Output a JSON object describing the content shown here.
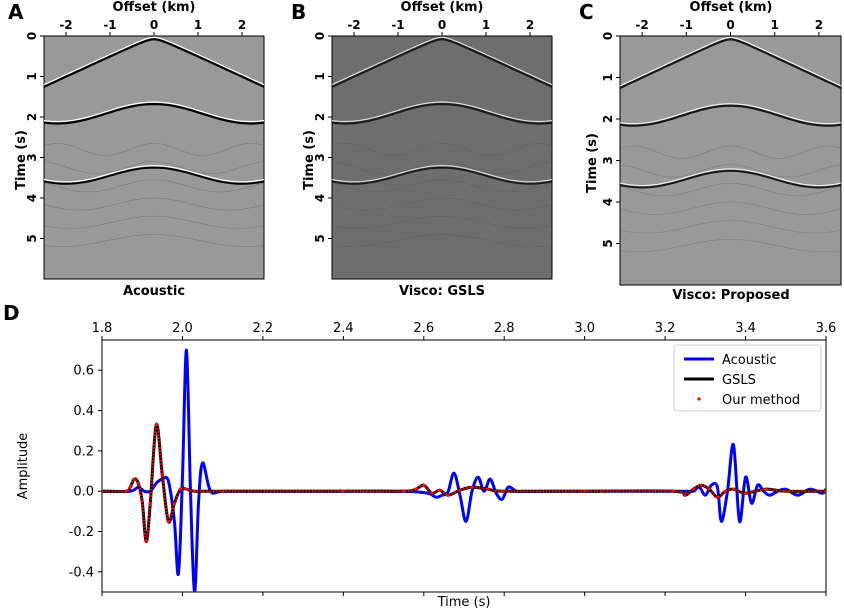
{
  "chart_data": [
    {
      "type": "heatmap",
      "panel_label": "A",
      "title": "Acoustic",
      "xlabel": "Offset (km)",
      "ylabel": "Time (s)",
      "xticks": [
        "-2",
        "-1",
        "0",
        "1",
        "2"
      ],
      "xtick_values": [
        -2,
        -1,
        0,
        1,
        2
      ],
      "yticks": [
        "0",
        "1",
        "2",
        "3",
        "4",
        "5"
      ],
      "ytick_values": [
        0,
        1,
        2,
        3,
        4,
        5
      ],
      "xlim": [
        -2.5,
        2.5
      ],
      "ylim": [
        0,
        6
      ],
      "background": "#999999",
      "reflector_strength": 1.0
    },
    {
      "type": "heatmap",
      "panel_label": "B",
      "title": "Visco: GSLS",
      "xlabel": "Offset (km)",
      "ylabel": "Time (s)",
      "xticks": [
        "-2",
        "-1",
        "0",
        "1",
        "2"
      ],
      "xtick_values": [
        -2,
        -1,
        0,
        1,
        2
      ],
      "yticks": [
        "0",
        "1",
        "2",
        "3",
        "4",
        "5"
      ],
      "ytick_values": [
        0,
        1,
        2,
        3,
        4,
        5
      ],
      "xlim": [
        -2.5,
        2.5
      ],
      "ylim": [
        0,
        6
      ],
      "background": "#6e6e6e",
      "reflector_strength": 0.75
    },
    {
      "type": "heatmap",
      "panel_label": "C",
      "title": "Visco: Proposed",
      "xlabel": "Offset (km)",
      "ylabel": "Time (s)",
      "xticks": [
        "-2",
        "-1",
        "0",
        "1",
        "2"
      ],
      "xtick_values": [
        -2,
        -1,
        0,
        1,
        2
      ],
      "yticks": [
        "0",
        "1",
        "2",
        "3",
        "4",
        "5"
      ],
      "ytick_values": [
        0,
        1,
        2,
        3,
        4,
        5
      ],
      "xlim": [
        -2.5,
        2.5
      ],
      "ylim": [
        0,
        6
      ],
      "background": "#999999",
      "reflector_strength": 0.85
    },
    {
      "type": "line",
      "panel_label": "D",
      "title": "",
      "xlabel": "Time (s)",
      "ylabel": "Amplitude",
      "xlim": [
        1.8,
        3.6
      ],
      "ylim": [
        -0.5,
        0.75
      ],
      "xticks": [
        "1.8",
        "2.0",
        "2.2",
        "2.4",
        "2.6",
        "2.8",
        "3.0",
        "3.2",
        "3.4",
        "3.6"
      ],
      "xtick_values": [
        1.8,
        2.0,
        2.2,
        2.4,
        2.6,
        2.8,
        3.0,
        3.2,
        3.4,
        3.6
      ],
      "yticks": [
        "-0.4",
        "-0.2",
        "0.0",
        "0.2",
        "0.4",
        "0.6"
      ],
      "ytick_values": [
        -0.4,
        -0.2,
        0.0,
        0.2,
        0.4,
        0.6
      ],
      "legend_position": "top-right",
      "series": [
        {
          "name": "Acoustic",
          "color": "#0000ff",
          "style": "line",
          "x": [
            1.8,
            1.87,
            1.89,
            1.905,
            1.92,
            1.935,
            1.95,
            1.965,
            1.98,
            1.99,
            2.0,
            2.01,
            2.02,
            2.03,
            2.04,
            2.05,
            2.07,
            2.1,
            2.2,
            2.4,
            2.55,
            2.61,
            2.63,
            2.645,
            2.66,
            2.675,
            2.69,
            2.705,
            2.72,
            2.735,
            2.75,
            2.765,
            2.78,
            2.795,
            2.81,
            2.83,
            2.85,
            2.9,
            3.0,
            3.1,
            3.2,
            3.25,
            3.27,
            3.285,
            3.3,
            3.315,
            3.33,
            3.34,
            3.355,
            3.37,
            3.385,
            3.4,
            3.415,
            3.43,
            3.445,
            3.46,
            3.48,
            3.5,
            3.53,
            3.56,
            3.59,
            3.6
          ],
          "y": [
            0.0,
            0.0,
            0.02,
            0.0,
            0.0,
            0.04,
            0.06,
            0.05,
            -0.15,
            -0.41,
            0.06,
            0.7,
            0.0,
            -0.5,
            -0.06,
            0.14,
            0.0,
            0.0,
            0.0,
            0.0,
            0.0,
            -0.01,
            -0.03,
            -0.02,
            -0.005,
            0.09,
            -0.02,
            -0.15,
            0.0,
            0.07,
            0.0,
            0.06,
            -0.01,
            -0.04,
            0.02,
            0.0,
            0.0,
            0.0,
            0.0,
            0.0,
            0.0,
            0.0,
            0.0,
            0.02,
            -0.02,
            0.03,
            0.02,
            -0.15,
            0.0,
            0.23,
            -0.15,
            0.07,
            -0.06,
            0.03,
            0.0,
            -0.02,
            0.0,
            0.01,
            -0.02,
            0.01,
            -0.01,
            0.01
          ]
        },
        {
          "name": "GSLS",
          "color": "#000000",
          "style": "line",
          "x": [
            1.8,
            1.86,
            1.87,
            1.88,
            1.89,
            1.9,
            1.91,
            1.92,
            1.935,
            1.95,
            1.965,
            1.98,
            1.995,
            2.01,
            2.03,
            2.1,
            2.4,
            2.55,
            2.58,
            2.6,
            2.62,
            2.64,
            2.66,
            2.69,
            2.72,
            2.76,
            2.8,
            3.0,
            3.22,
            3.25,
            3.27,
            3.29,
            3.31,
            3.33,
            3.35,
            3.37,
            3.4,
            3.45,
            3.5,
            3.6
          ],
          "y": [
            0.0,
            0.0,
            0.02,
            0.06,
            0.04,
            -0.05,
            -0.25,
            -0.06,
            0.33,
            0.08,
            -0.15,
            -0.06,
            0.01,
            0.01,
            0.0,
            0.0,
            0.0,
            0.0,
            0.01,
            0.03,
            -0.01,
            0.005,
            -0.02,
            0.005,
            0.02,
            0.01,
            0.0,
            0.0,
            0.0,
            -0.02,
            0.01,
            0.03,
            0.01,
            -0.03,
            0.0,
            0.01,
            -0.01,
            0.01,
            0.0,
            0.0
          ]
        },
        {
          "name": "Our method",
          "color": "#ff0000",
          "style": "dots",
          "x": [
            1.8,
            1.86,
            1.87,
            1.88,
            1.89,
            1.9,
            1.91,
            1.92,
            1.935,
            1.95,
            1.965,
            1.98,
            1.995,
            2.01,
            2.03,
            2.1,
            2.4,
            2.55,
            2.58,
            2.6,
            2.62,
            2.64,
            2.66,
            2.69,
            2.72,
            2.76,
            2.8,
            3.0,
            3.22,
            3.25,
            3.27,
            3.29,
            3.31,
            3.33,
            3.35,
            3.37,
            3.4,
            3.45,
            3.5,
            3.6
          ],
          "y": [
            0.0,
            0.0,
            0.02,
            0.06,
            0.04,
            -0.05,
            -0.25,
            -0.06,
            0.33,
            0.08,
            -0.15,
            -0.06,
            0.01,
            0.01,
            0.0,
            0.0,
            0.0,
            0.0,
            0.01,
            0.03,
            -0.01,
            0.005,
            -0.02,
            0.005,
            0.02,
            0.01,
            0.0,
            0.0,
            0.0,
            -0.02,
            0.01,
            0.03,
            0.01,
            -0.03,
            0.0,
            0.01,
            -0.01,
            0.01,
            0.0,
            0.0
          ]
        }
      ]
    }
  ]
}
